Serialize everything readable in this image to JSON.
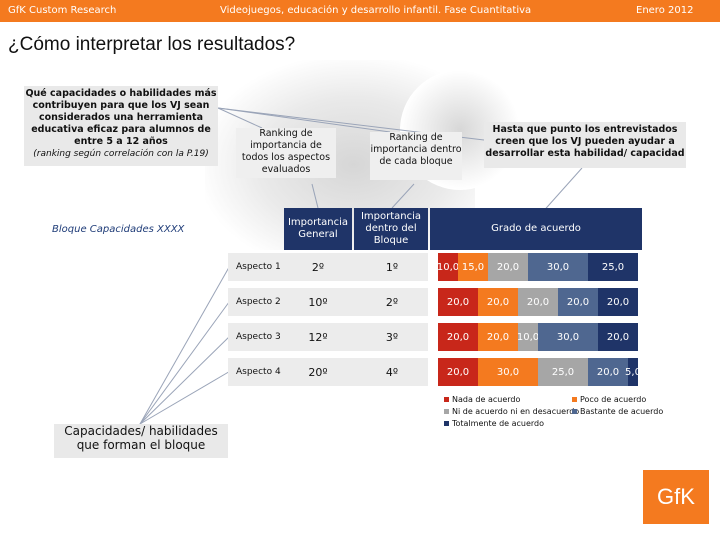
{
  "header": {
    "left": "GfK Custom Research",
    "center": "Videojuegos, educación y desarrollo infantil. Fase Cuantitativa",
    "right": "Enero 2012"
  },
  "title": "¿Cómo interpretar los resultados?",
  "note_left": {
    "line1": "Qué capacidades o habilidades más contribuyen para que los VJ sean considerados una herramienta educativa eficaz para alumnos de entre 5 a 12 años",
    "line2": "(ranking según correlación con la P.19)"
  },
  "ranking_general_label": "Ranking de importancia de todos los aspectos evaluados",
  "ranking_bloque_label": "Ranking de importancia dentro de cada bloque",
  "agreement_label": "Hasta que punto los entrevistados creen que los VJ pueden ayudar a desarrollar esta habilidad/ capacidad",
  "bloque_label": "Bloque Capacidades XXXX",
  "bottom_note": "Capacidades/ habilidades que forman el bloque",
  "table_headers": {
    "general": "Importancia General",
    "bloque": "Importancia dentro del Bloque",
    "agreement": "Grado de acuerdo"
  },
  "rows": [
    {
      "aspect": "Aspecto 1",
      "general": "2º",
      "bloque": "1º"
    },
    {
      "aspect": "Aspecto 2",
      "general": "10º",
      "bloque": "2º"
    },
    {
      "aspect": "Aspecto 3",
      "general": "12º",
      "bloque": "3º"
    },
    {
      "aspect": "Aspecto 4",
      "general": "20º",
      "bloque": "4º"
    }
  ],
  "chart_data": {
    "type": "bar",
    "stacked": true,
    "orientation": "horizontal",
    "categories": [
      "Aspecto 1",
      "Aspecto 2",
      "Aspecto 3",
      "Aspecto 4"
    ],
    "series": [
      {
        "name": "Nada de acuerdo",
        "color": "#c8271a",
        "values": [
          10.0,
          20.0,
          20.0,
          20.0
        ],
        "labels": [
          "10,0",
          "20,0",
          "20,0",
          "20,0"
        ]
      },
      {
        "name": "Poco de acuerdo",
        "color": "#f47a1f",
        "values": [
          15.0,
          20.0,
          20.0,
          30.0
        ],
        "labels": [
          "15,0",
          "20,0",
          "20,0",
          "30,0"
        ]
      },
      {
        "name": "Ni de acuerdo ni en desacuerdo",
        "color": "#a6a6a6",
        "values": [
          20.0,
          20.0,
          10.0,
          25.0
        ],
        "labels": [
          "20,0",
          "20,0",
          "10,0",
          "25,0"
        ]
      },
      {
        "name": "Bastante de acuerdo",
        "color": "#4f6790",
        "values": [
          30.0,
          20.0,
          30.0,
          20.0
        ],
        "labels": [
          "30,0",
          "20,0",
          "30,0",
          "20,0"
        ]
      },
      {
        "name": "Totalmente de acuerdo",
        "color": "#1f3468",
        "values": [
          25.0,
          20.0,
          20.0,
          5.0
        ],
        "labels": [
          "25,0",
          "20,0",
          "20,0",
          "5,0"
        ]
      }
    ],
    "xlim": [
      0,
      100
    ]
  },
  "logo": "GfK"
}
